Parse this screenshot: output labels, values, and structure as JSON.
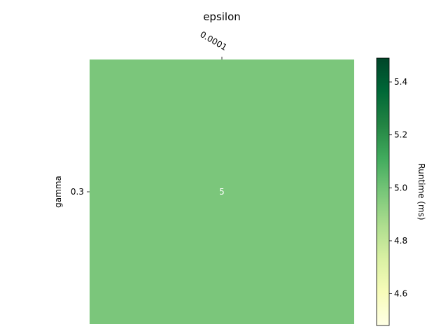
{
  "chart_data": {
    "type": "heatmap",
    "title": "",
    "xlabel": "epsilon",
    "ylabel": "gamma",
    "x_categories": [
      "0.0001"
    ],
    "y_categories": [
      "0.3"
    ],
    "values": [
      [
        5
      ]
    ],
    "cell_labels": [
      [
        "5"
      ]
    ],
    "cell_color": "#7bc67b",
    "colorbar": {
      "label": "Runtime (ms)",
      "range": [
        4.48,
        5.49
      ],
      "ticks": [
        4.6,
        4.8,
        5.0,
        5.2,
        5.4
      ],
      "tick_labels": [
        "4.6",
        "4.8",
        "5.0",
        "5.2",
        "5.4"
      ],
      "colormap": "YlGn",
      "colormap_stops": [
        "#ffffe5",
        "#f7fcb9",
        "#d9f0a3",
        "#addd8e",
        "#78c679",
        "#41ab5d",
        "#238443",
        "#006837",
        "#004529"
      ]
    },
    "xaxis_position": "top",
    "grid": false
  }
}
